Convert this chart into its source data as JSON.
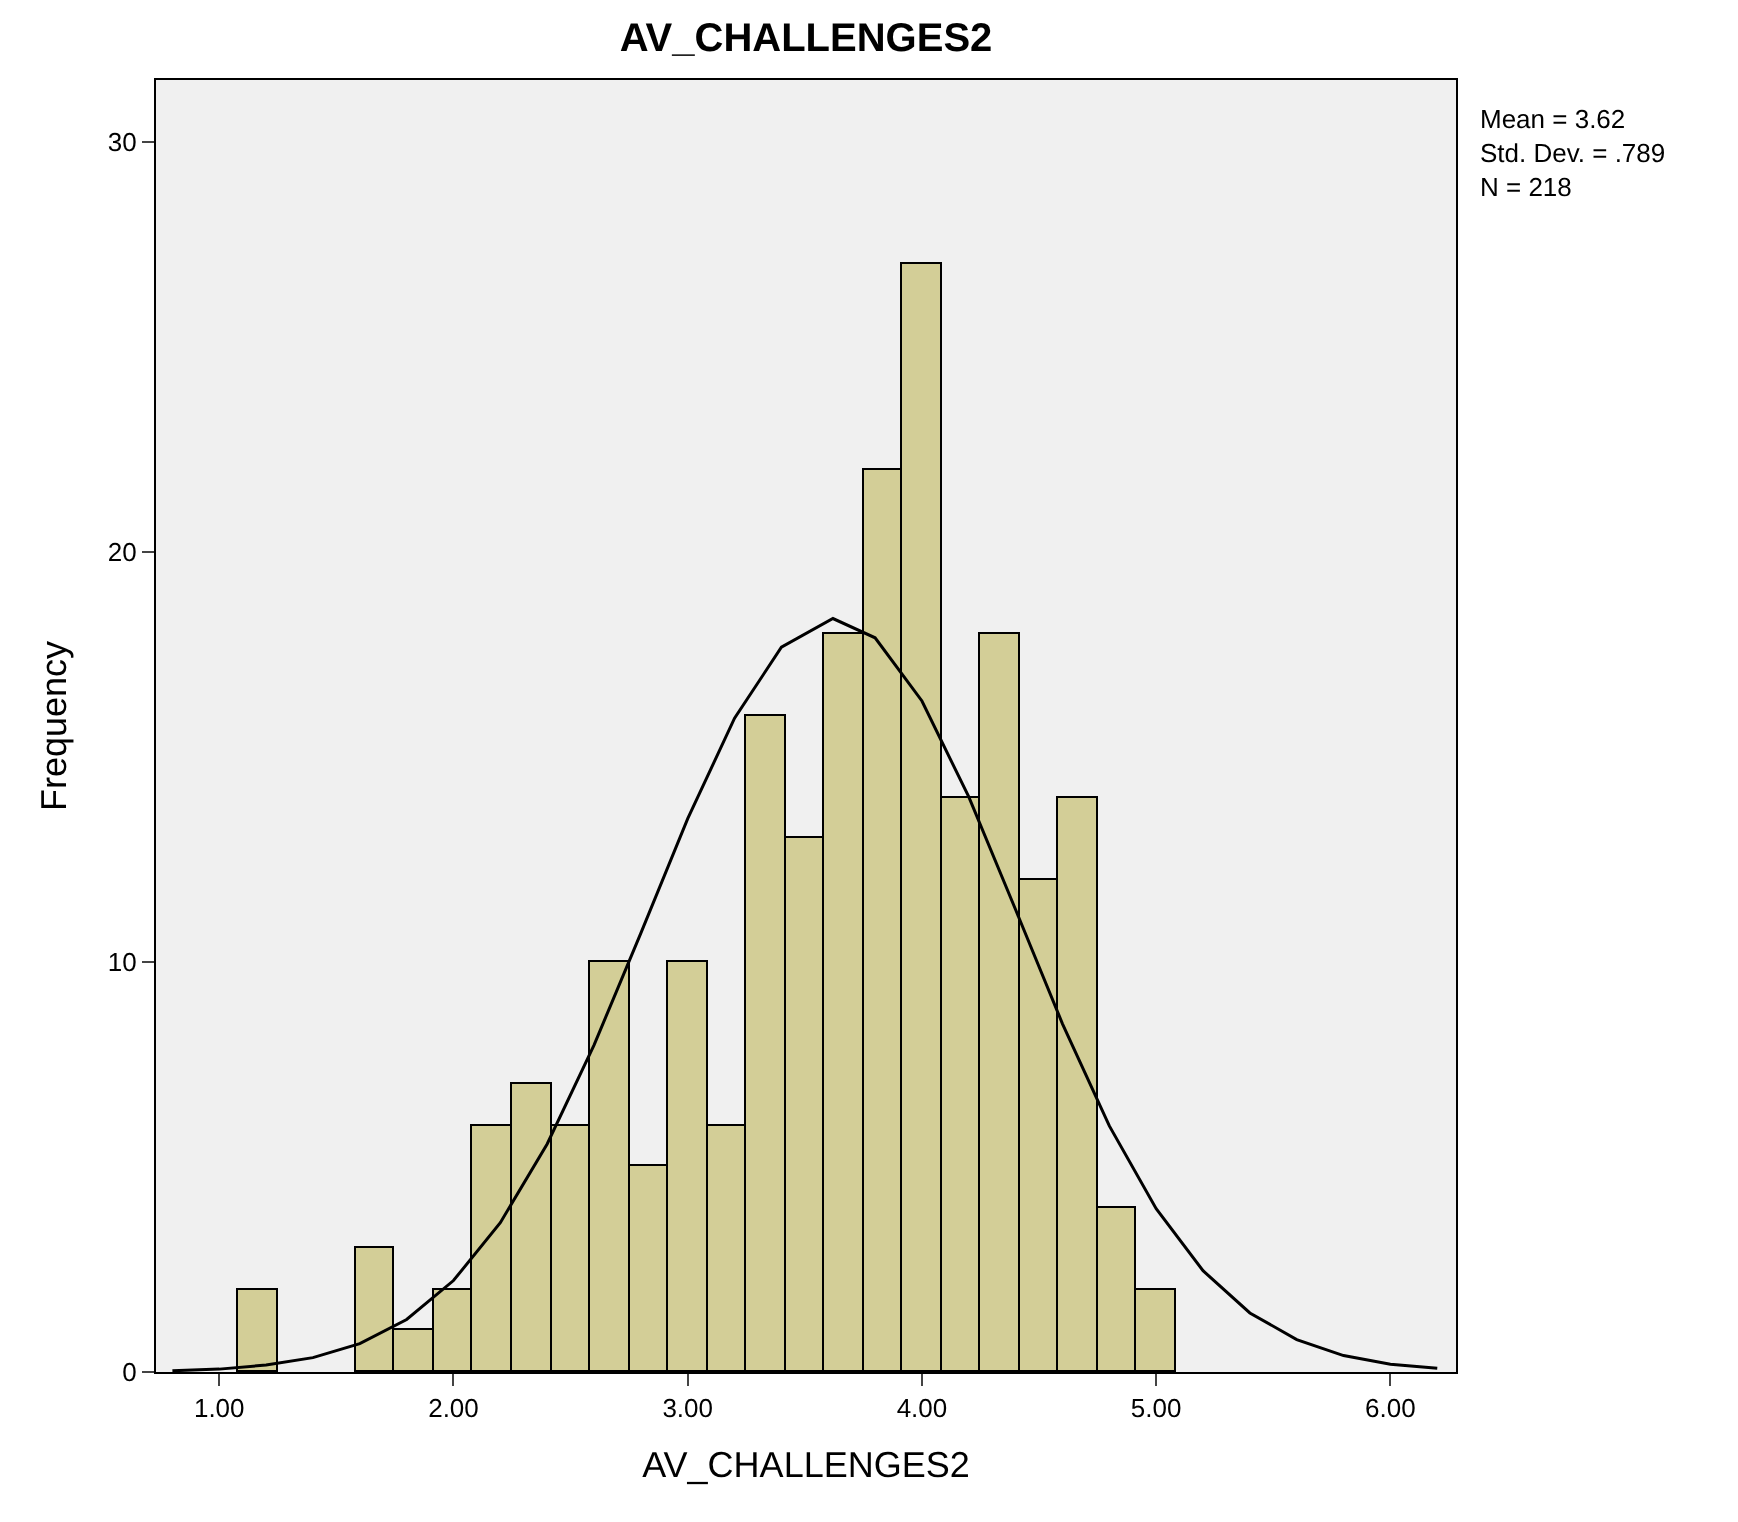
{
  "chart_data": {
    "type": "histogram",
    "title": "AV_CHALLENGES2",
    "xlabel": "AV_CHALLENGES2",
    "ylabel": "Frequency",
    "bins": [
      1.083,
      1.25,
      1.417,
      1.583,
      1.75,
      1.917,
      2.083,
      2.25,
      2.417,
      2.583,
      2.75,
      2.917,
      3.083,
      3.25,
      3.417,
      3.583,
      3.75,
      3.917,
      4.083,
      4.25,
      4.417,
      4.583,
      4.75,
      4.917,
      5.083
    ],
    "values": [
      2,
      0,
      0,
      3,
      1,
      2,
      6,
      7,
      6,
      10,
      5,
      10,
      6,
      16,
      13,
      18,
      22,
      27,
      14,
      18,
      12,
      14,
      4,
      2
    ],
    "color": "#d3ce97",
    "series": [
      {
        "type": "line",
        "color": "#000000",
        "x": [
          0.8,
          1.0,
          1.2,
          1.4,
          1.6,
          1.8,
          2.0,
          2.2,
          2.4,
          2.6,
          2.8,
          3.0,
          3.2,
          3.4,
          3.62,
          3.8,
          4.0,
          4.2,
          4.4,
          4.6,
          4.8,
          5.0,
          5.2,
          5.4,
          5.6,
          5.8,
          6.0,
          6.2
        ],
        "values": [
          0.03,
          0.07,
          0.17,
          0.35,
          0.69,
          1.28,
          2.23,
          3.64,
          5.56,
          7.97,
          10.7,
          13.49,
          15.94,
          17.67,
          18.37,
          17.9,
          16.36,
          14.02,
          11.27,
          8.49,
          6.0,
          3.98,
          2.47,
          1.44,
          0.79,
          0.4,
          0.19,
          0.09
        ]
      }
    ],
    "annotations": [
      "Mean = 3.62",
      "Std. Dev. = .789",
      "N = 218"
    ],
    "xlim": [
      0.73,
      6.28
    ],
    "ylim": [
      0,
      31.5
    ],
    "xticks": [
      {
        "value": 1,
        "label": "1.00"
      },
      {
        "value": 2,
        "label": "2.00"
      },
      {
        "value": 3,
        "label": "3.00"
      },
      {
        "value": 4,
        "label": "4.00"
      },
      {
        "value": 5,
        "label": "5.00"
      },
      {
        "value": 6,
        "label": "6.00"
      }
    ],
    "yticks": [
      0,
      10,
      20,
      30
    ],
    "grid": false,
    "marker": "none",
    "line_style": "solid"
  }
}
